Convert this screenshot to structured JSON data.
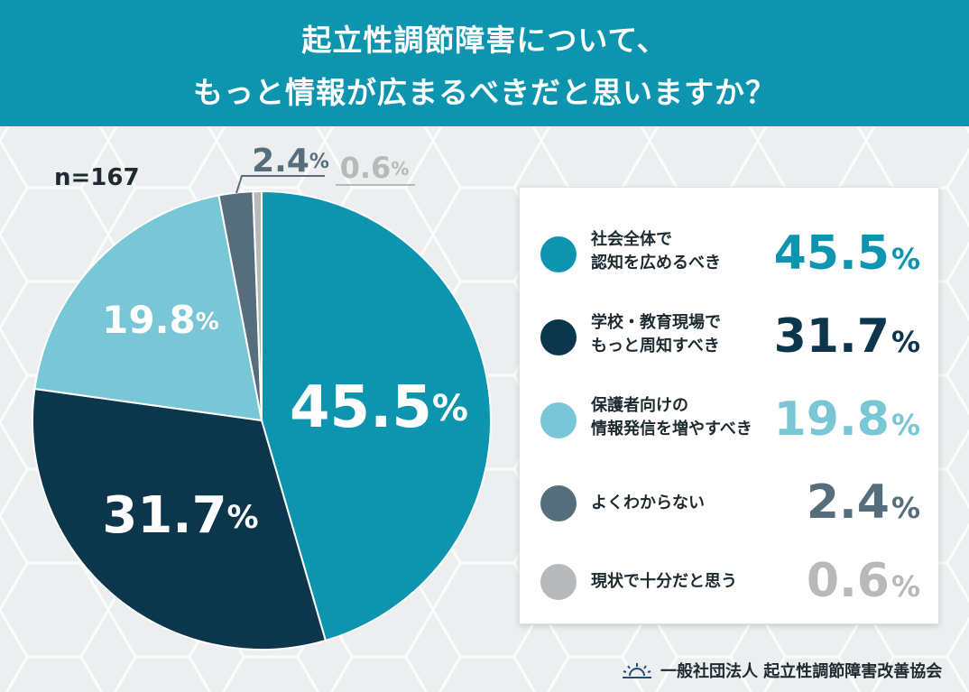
{
  "header": {
    "title_line1": "起立性調節障害について、",
    "title_line2": "もっと情報が広まるべきだと思いますか？"
  },
  "sample_size": "n=167",
  "chart_data": {
    "type": "pie",
    "title": "起立性調節障害について、もっと情報が広まるべきだと思いますか？",
    "n": 167,
    "unit": "%",
    "slices": [
      {
        "label": "社会全体で認知を広めるべき",
        "label_lines": [
          "社会全体で",
          "認知を広めるべき"
        ],
        "value": 45.5,
        "value_text": "45.5",
        "color": "#0d95b0",
        "text_color": "#ffffff"
      },
      {
        "label": "学校・教育現場でもっと周知すべき",
        "label_lines": [
          "学校・教育現場で",
          "もっと周知すべき"
        ],
        "value": 31.7,
        "value_text": "31.7",
        "color": "#0b364b",
        "text_color": "#ffffff"
      },
      {
        "label": "保護者向けの情報発信を増やすべき",
        "label_lines": [
          "保護者向けの",
          "情報発信を増やすべき"
        ],
        "value": 19.8,
        "value_text": "19.8",
        "color": "#78c6d6",
        "text_color": "#ffffff"
      },
      {
        "label": "よくわからない",
        "label_lines": [
          "よくわからない"
        ],
        "value": 2.4,
        "value_text": "2.4",
        "color": "#566e7b",
        "text_color": "#566e7b"
      },
      {
        "label": "現状で十分だと思う",
        "label_lines": [
          "現状で十分だと思う"
        ],
        "value": 0.6,
        "value_text": "0.6",
        "color": "#b8b9ba",
        "text_color": "#b8b9ba"
      }
    ]
  },
  "footer": {
    "organization": "一般社団法人 起立性調節障害改善協会",
    "logo_color": "#1f4f7a"
  }
}
